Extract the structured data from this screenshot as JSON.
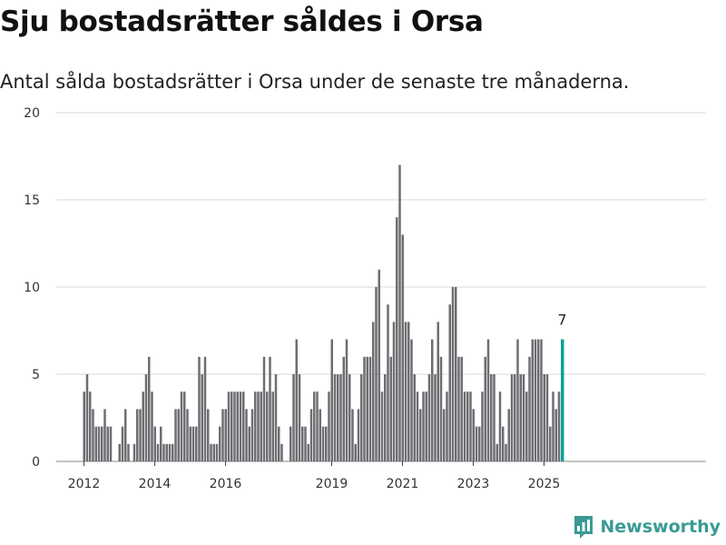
{
  "title": "Sju bostadsrätter såldes i Orsa",
  "subtitle": "Antal sålda bostadsrätter i Orsa under de senaste tre månaderna.",
  "logo_text": "Newsworthy",
  "colors": {
    "bar": "#6e6d72",
    "highlight": "#0f9f99",
    "grid": "#d9d9d9",
    "logo": "#3a9a94"
  },
  "chart_data": {
    "type": "bar",
    "ylim": [
      0,
      20
    ],
    "yticks": [
      "0",
      "5",
      "10",
      "15",
      "20"
    ],
    "xticks": [
      {
        "label": "2012",
        "year": 2012
      },
      {
        "label": "2014",
        "year": 2014
      },
      {
        "label": "2016",
        "year": 2016
      },
      {
        "label": "2019",
        "year": 2019
      },
      {
        "label": "2021",
        "year": 2021
      },
      {
        "label": "2023",
        "year": 2023
      },
      {
        "label": "2025",
        "year": 2025
      }
    ],
    "start_month": "2012-01",
    "values": [
      4,
      5,
      4,
      3,
      2,
      2,
      2,
      3,
      2,
      2,
      0,
      0,
      1,
      2,
      3,
      1,
      0,
      1,
      3,
      3,
      4,
      5,
      6,
      4,
      2,
      1,
      2,
      1,
      1,
      1,
      1,
      3,
      3,
      4,
      4,
      3,
      2,
      2,
      2,
      6,
      5,
      6,
      3,
      1,
      1,
      1,
      2,
      3,
      3,
      4,
      4,
      4,
      4,
      4,
      4,
      3,
      2,
      3,
      4,
      4,
      4,
      6,
      4,
      6,
      4,
      5,
      2,
      1,
      0,
      0,
      2,
      5,
      7,
      5,
      2,
      2,
      1,
      3,
      4,
      4,
      3,
      2,
      2,
      4,
      7,
      5,
      5,
      5,
      6,
      7,
      5,
      3,
      1,
      3,
      5,
      6,
      6,
      6,
      8,
      10,
      11,
      4,
      5,
      9,
      6,
      8,
      14,
      17,
      13,
      8,
      8,
      7,
      5,
      4,
      3,
      4,
      4,
      5,
      7,
      5,
      8,
      6,
      3,
      4,
      9,
      10,
      10,
      6,
      6,
      4,
      4,
      4,
      3,
      2,
      2,
      4,
      6,
      7,
      5,
      5,
      1,
      4,
      2,
      1,
      3,
      5,
      5,
      7,
      5,
      5,
      4,
      6,
      7,
      7,
      7,
      7,
      5,
      5,
      2,
      4,
      3,
      4,
      7
    ],
    "highlight": {
      "month": "2025-07",
      "value": 7,
      "label": "7"
    }
  }
}
